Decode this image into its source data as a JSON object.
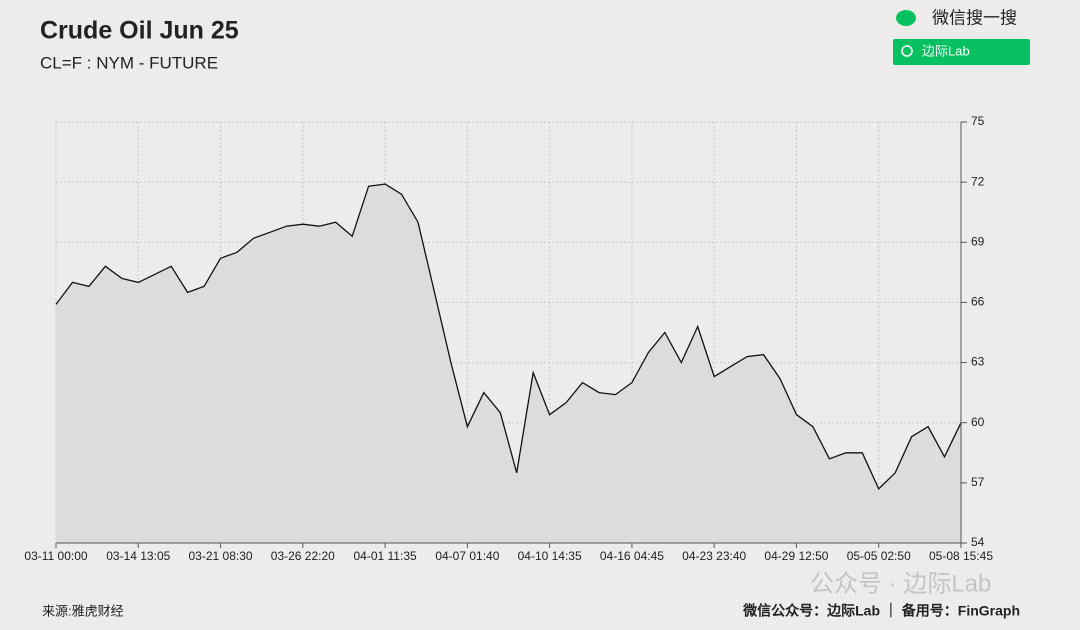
{
  "chart_data": {
    "type": "line",
    "title": "Crude Oil Jun 25",
    "subtitle": "CL=F : NYM - FUTURE",
    "categories": [
      "03-11 00:00",
      null,
      null,
      null,
      null,
      "03-14 13:05",
      null,
      null,
      null,
      null,
      "03-21 08:30",
      null,
      null,
      null,
      null,
      "03-26 22:20",
      null,
      null,
      null,
      null,
      "04-01 11:35",
      null,
      null,
      null,
      null,
      "04-07 01:40",
      null,
      null,
      null,
      null,
      "04-10 14:35",
      null,
      null,
      null,
      null,
      "04-16 04:45",
      null,
      null,
      null,
      null,
      "04-23 23:40",
      null,
      null,
      null,
      null,
      "04-29 12:50",
      null,
      null,
      null,
      null,
      "05-05 02:50",
      null,
      null,
      null,
      null,
      "05-08 15:45"
    ],
    "values": [
      65.9,
      67.0,
      66.8,
      67.8,
      67.2,
      67.0,
      67.4,
      67.8,
      66.5,
      66.8,
      68.2,
      68.5,
      69.2,
      69.5,
      69.8,
      69.9,
      69.8,
      70.0,
      69.3,
      71.8,
      71.9,
      71.4,
      70.0,
      66.5,
      63.0,
      59.8,
      61.5,
      60.5,
      57.5,
      62.5,
      60.4,
      61.0,
      62.0,
      61.5,
      61.4,
      62.0,
      63.5,
      64.5,
      63.0,
      64.8,
      62.3,
      62.8,
      63.3,
      63.4,
      62.2,
      60.4,
      59.8,
      58.2,
      58.5,
      58.5,
      56.7,
      57.5,
      59.3,
      59.8,
      58.3,
      60.0
    ],
    "color": "#111111",
    "ylim": [
      54,
      75
    ],
    "yticks": [
      54,
      57,
      60,
      63,
      66,
      69,
      72,
      75
    ],
    "grid": true,
    "source": "来源:雅虎财经",
    "footer": "微信公众号：边际Lab ｜ 备用号：FinGraph"
  },
  "watermark": {
    "search_hint": "微信搜一搜",
    "search_box": "边际Lab",
    "overlay": "公众号 · 边际Lab"
  }
}
